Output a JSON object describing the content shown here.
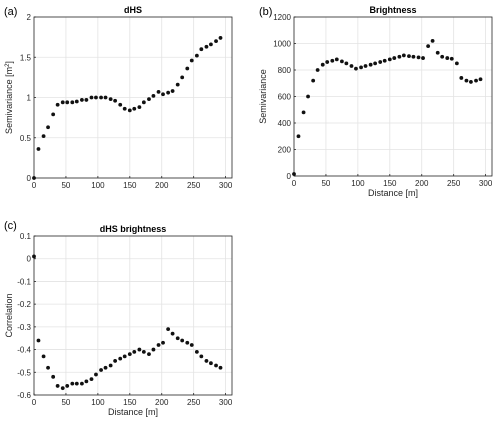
{
  "chart_data": [
    {
      "panel_label": "(a)",
      "type": "scatter",
      "title": "dHS",
      "xlabel": "",
      "ylabel": "Semivariance [m",
      "ylabel_sup": "2",
      "ylabel_end": "]",
      "xlim": [
        0,
        310
      ],
      "ylim": [
        0,
        2
      ],
      "xticks": [
        0,
        50,
        100,
        150,
        200,
        250,
        300
      ],
      "yticks": [
        0,
        0.5,
        1,
        1.5,
        2
      ],
      "ytick_labels": [
        "0",
        "0.5",
        "1",
        "1.5",
        "2"
      ],
      "grid": true,
      "x": [
        0,
        7,
        15,
        22,
        30,
        37,
        45,
        52,
        60,
        67,
        75,
        82,
        90,
        97,
        105,
        112,
        120,
        127,
        135,
        142,
        150,
        157,
        165,
        172,
        180,
        187,
        195,
        202,
        210,
        217,
        225,
        232,
        240,
        247,
        255,
        262,
        270,
        277,
        285,
        292
      ],
      "y": [
        0.0,
        0.36,
        0.52,
        0.63,
        0.79,
        0.91,
        0.94,
        0.94,
        0.94,
        0.95,
        0.97,
        0.97,
        1.0,
        1.0,
        1.0,
        1.0,
        0.98,
        0.96,
        0.91,
        0.86,
        0.84,
        0.86,
        0.88,
        0.94,
        0.98,
        1.02,
        1.07,
        1.04,
        1.06,
        1.08,
        1.16,
        1.25,
        1.36,
        1.46,
        1.52,
        1.6,
        1.63,
        1.66,
        1.7,
        1.74
      ]
    },
    {
      "panel_label": "(b)",
      "type": "scatter",
      "title": "Brightness",
      "xlabel": "Distance [m]",
      "ylabel": "Semivariance",
      "xlim": [
        0,
        310
      ],
      "ylim": [
        0,
        1200
      ],
      "xticks": [
        0,
        50,
        100,
        150,
        200,
        250,
        300
      ],
      "yticks": [
        0,
        200,
        400,
        600,
        800,
        1000,
        1200
      ],
      "grid": true,
      "x": [
        0,
        7,
        15,
        22,
        30,
        37,
        45,
        52,
        60,
        67,
        75,
        82,
        90,
        97,
        105,
        112,
        120,
        127,
        135,
        142,
        150,
        157,
        165,
        172,
        180,
        187,
        195,
        202,
        210,
        217,
        225,
        232,
        240,
        247,
        255,
        262,
        270,
        277,
        285,
        292
      ],
      "y": [
        15,
        300,
        480,
        600,
        720,
        800,
        840,
        860,
        870,
        880,
        865,
        850,
        830,
        810,
        820,
        830,
        840,
        850,
        860,
        870,
        880,
        890,
        900,
        910,
        905,
        900,
        895,
        890,
        980,
        1020,
        930,
        900,
        890,
        885,
        850,
        740,
        720,
        710,
        720,
        730
      ]
    },
    {
      "panel_label": "(c)",
      "type": "scatter",
      "title": "dHS brightness",
      "xlabel": "Distance [m]",
      "ylabel": "Correlation",
      "xlim": [
        0,
        310
      ],
      "ylim": [
        -0.6,
        0.1
      ],
      "xticks": [
        0,
        50,
        100,
        150,
        200,
        250,
        300
      ],
      "yticks": [
        -0.6,
        -0.5,
        -0.4,
        -0.3,
        -0.2,
        -0.1,
        0,
        0.1
      ],
      "ytick_labels": [
        "-0.6",
        "-0.5",
        "-0.4",
        "-0.3",
        "-0.2",
        "-0.1",
        "0",
        "0.1"
      ],
      "grid": true,
      "x": [
        0,
        7,
        15,
        22,
        30,
        37,
        45,
        52,
        60,
        67,
        75,
        82,
        90,
        97,
        105,
        112,
        120,
        127,
        135,
        142,
        150,
        157,
        165,
        172,
        180,
        187,
        195,
        202,
        210,
        217,
        225,
        232,
        240,
        247,
        255,
        262,
        270,
        277,
        285,
        292
      ],
      "y": [
        0.01,
        -0.36,
        -0.43,
        -0.48,
        -0.52,
        -0.56,
        -0.57,
        -0.56,
        -0.55,
        -0.55,
        -0.55,
        -0.54,
        -0.53,
        -0.51,
        -0.49,
        -0.48,
        -0.47,
        -0.45,
        -0.44,
        -0.43,
        -0.42,
        -0.41,
        -0.4,
        -0.41,
        -0.42,
        -0.4,
        -0.38,
        -0.37,
        -0.31,
        -0.33,
        -0.35,
        -0.36,
        -0.37,
        -0.38,
        -0.41,
        -0.43,
        -0.45,
        -0.46,
        -0.47,
        -0.48
      ]
    }
  ]
}
